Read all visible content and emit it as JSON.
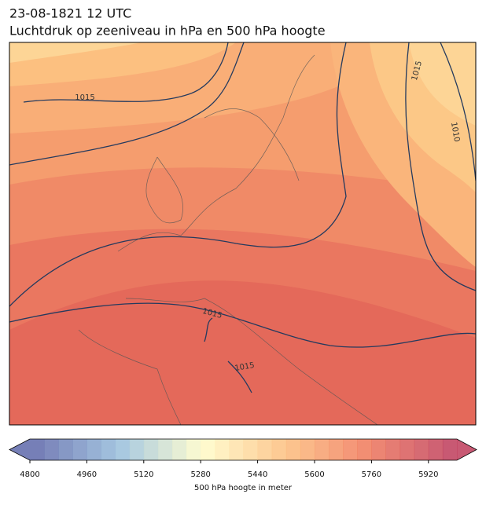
{
  "title": "23-08-1821 12 UTC",
  "subtitle": "Luchtdruk op zeeniveau in hPa en 500 hPa hoogte",
  "contour_labels": [
    "1015",
    "1015",
    "1010",
    "1015",
    "1015"
  ],
  "colorbar": {
    "label": "500 hPa hoogte in meter",
    "lim": [
      4800,
      6000
    ],
    "ticks": [
      4800,
      4960,
      5120,
      5280,
      5440,
      5600,
      5760,
      5920
    ]
  }
}
